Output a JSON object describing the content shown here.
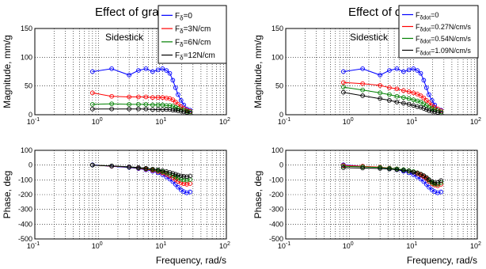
{
  "chart_data": [
    {
      "type": "line",
      "title": "Effect of gradient",
      "annotation": "Sidestick",
      "xlabel": "",
      "ylabel": "Magnitude, mm/g",
      "xscale": "log",
      "xlim": [
        0.1,
        100
      ],
      "ylim": [
        0,
        150
      ],
      "yticks": [
        0,
        50,
        100,
        150
      ],
      "xticks": [
        "10-1",
        "100",
        "101",
        "102"
      ],
      "grid": true,
      "legend": "top-right",
      "series": [
        {
          "name": "Fδ=0",
          "legend_main": "F",
          "legend_sub": "δ",
          "legend_rest": "=0",
          "color": "#0000ff",
          "x": [
            0.8,
            1.6,
            3,
            4.2,
            5.5,
            7,
            8.5,
            10,
            11.5,
            13,
            14.5,
            16,
            17.5,
            19.5,
            21.5,
            24,
            27
          ],
          "y": [
            75,
            80,
            69,
            77,
            80,
            75,
            78,
            80,
            77,
            72,
            60,
            47,
            35,
            25,
            17,
            10,
            8
          ]
        },
        {
          "name": "Fδ=3N/cm",
          "legend_main": "F",
          "legend_sub": "δ",
          "legend_rest": "=3N/cm",
          "color": "#ff0000",
          "x": [
            0.8,
            1.6,
            3,
            4.2,
            5.5,
            7,
            8.5,
            10,
            11.5,
            13,
            14.5,
            16,
            17.5,
            19.5,
            21.5,
            24,
            27
          ],
          "y": [
            38,
            32,
            31,
            31,
            31,
            30,
            30,
            30,
            29,
            28,
            26,
            22,
            18,
            14,
            11,
            8,
            6
          ]
        },
        {
          "name": "Fδ=6N/cm",
          "legend_main": "F",
          "legend_sub": "δ",
          "legend_rest": "=6N/cm",
          "color": "#008000",
          "x": [
            0.8,
            1.6,
            3,
            4.2,
            5.5,
            7,
            8.5,
            10,
            11.5,
            13,
            14.5,
            16,
            17.5,
            19.5,
            21.5,
            24,
            27
          ],
          "y": [
            18,
            19,
            18,
            18,
            18,
            17,
            17,
            17,
            16,
            16,
            15,
            13,
            11,
            9,
            8,
            6,
            5
          ]
        },
        {
          "name": "Fδ=12N/cm",
          "legend_main": "F",
          "legend_sub": "δ",
          "legend_rest": "=12N/cm",
          "color": "#000000",
          "x": [
            0.8,
            1.6,
            3,
            4.2,
            5.5,
            7,
            8.5,
            10,
            11.5,
            13,
            14.5,
            16,
            17.5,
            19.5,
            21.5,
            24,
            27
          ],
          "y": [
            10,
            10,
            10,
            10,
            10,
            9,
            9,
            9,
            9,
            9,
            8,
            8,
            7,
            6,
            5,
            4,
            3
          ]
        }
      ]
    },
    {
      "type": "line",
      "title": "Effect of damping",
      "annotation": "Sidestick",
      "xlabel": "",
      "ylabel": "Magnitude, mm/g",
      "xscale": "log",
      "xlim": [
        0.1,
        100
      ],
      "ylim": [
        0,
        150
      ],
      "yticks": [
        0,
        50,
        100,
        150
      ],
      "xticks": [
        "10-1",
        "100",
        "101",
        "102"
      ],
      "grid": true,
      "legend": "top-right",
      "series": [
        {
          "name": "Fδdot=0",
          "legend_main": "F",
          "legend_sub": "δdot",
          "legend_rest": "=0",
          "color": "#0000ff",
          "x": [
            0.8,
            1.6,
            3,
            4.2,
            5.5,
            7,
            8.5,
            10,
            11.5,
            13,
            14.5,
            16,
            17.5,
            19.5,
            21.5,
            24,
            27
          ],
          "y": [
            75,
            80,
            69,
            77,
            80,
            75,
            78,
            80,
            77,
            72,
            60,
            47,
            35,
            25,
            17,
            10,
            8
          ]
        },
        {
          "name": "Fδdot=0.27N/cm/s",
          "legend_main": "F",
          "legend_sub": "δdot",
          "legend_rest": "=0.27N/cm/s",
          "color": "#ff0000",
          "x": [
            0.8,
            1.6,
            3,
            4.2,
            5.5,
            7,
            8.5,
            10,
            11.5,
            13,
            14.5,
            16,
            17.5,
            19.5,
            21.5,
            24,
            27
          ],
          "y": [
            56,
            54,
            51,
            47,
            45,
            42,
            40,
            38,
            36,
            33,
            29,
            25,
            21,
            16,
            13,
            10,
            7
          ]
        },
        {
          "name": "Fδdot=0.54N/cm/s",
          "legend_main": "F",
          "legend_sub": "δdot",
          "legend_rest": "=0.54N/cm/s",
          "color": "#008000",
          "x": [
            0.8,
            1.6,
            3,
            4.2,
            5.5,
            7,
            8.5,
            10,
            11.5,
            13,
            14.5,
            16,
            17.5,
            19.5,
            21.5,
            24,
            27
          ],
          "y": [
            48,
            43,
            38,
            35,
            32,
            30,
            28,
            26,
            24,
            22,
            19,
            16,
            13,
            11,
            9,
            7,
            5
          ]
        },
        {
          "name": "Fδdot=1.09N/cm/s",
          "legend_main": "F",
          "legend_sub": "δdot",
          "legend_rest": "=1.09N/cm/s",
          "color": "#000000",
          "x": [
            0.8,
            1.6,
            3,
            4.2,
            5.5,
            7,
            8.5,
            10,
            11.5,
            13,
            14.5,
            16,
            17.5,
            19.5,
            21.5,
            24,
            27
          ],
          "y": [
            39,
            33,
            28,
            25,
            22,
            20,
            18,
            16,
            14,
            13,
            11,
            9,
            7,
            6,
            5,
            4,
            3
          ]
        }
      ]
    },
    {
      "type": "line",
      "title": "",
      "xlabel": "Frequency, rad/s",
      "ylabel": "Phase, deg",
      "xscale": "log",
      "xlim": [
        0.1,
        100
      ],
      "ylim": [
        -500,
        100
      ],
      "yticks": [
        -500,
        -400,
        -300,
        -200,
        -100,
        0,
        100
      ],
      "xticks": [
        "10-1",
        "100",
        "101",
        "102"
      ],
      "grid": true,
      "series": [
        {
          "color": "#0000ff",
          "x": [
            0.8,
            1.6,
            3,
            4.2,
            5.5,
            7,
            8.5,
            10,
            11.5,
            13,
            14.5,
            16,
            17.5,
            19.5,
            21.5,
            24,
            27
          ],
          "y": [
            2,
            -8,
            -16,
            -24,
            -32,
            -42,
            -52,
            -65,
            -80,
            -95,
            -112,
            -130,
            -150,
            -168,
            -180,
            -188,
            -182
          ]
        },
        {
          "color": "#ff0000",
          "x": [
            0.8,
            1.6,
            3,
            4.2,
            5.5,
            7,
            8.5,
            10,
            11.5,
            13,
            14.5,
            16,
            17.5,
            19.5,
            21.5,
            24,
            27
          ],
          "y": [
            0,
            -7,
            -14,
            -21,
            -28,
            -36,
            -44,
            -53,
            -63,
            -74,
            -86,
            -98,
            -110,
            -120,
            -126,
            -130,
            -125
          ]
        },
        {
          "color": "#008000",
          "x": [
            0.8,
            1.6,
            3,
            4.2,
            5.5,
            7,
            8.5,
            10,
            11.5,
            13,
            14.5,
            16,
            17.5,
            19.5,
            21.5,
            24,
            27
          ],
          "y": [
            0,
            -6,
            -13,
            -19,
            -25,
            -31,
            -38,
            -45,
            -53,
            -61,
            -70,
            -80,
            -88,
            -96,
            -100,
            -102,
            -98
          ]
        },
        {
          "color": "#000000",
          "x": [
            0.8,
            1.6,
            3,
            4.2,
            5.5,
            7,
            8.5,
            10,
            11.5,
            13,
            14.5,
            16,
            17.5,
            19.5,
            21.5,
            24,
            27
          ],
          "y": [
            0,
            -6,
            -12,
            -17,
            -22,
            -27,
            -32,
            -38,
            -44,
            -50,
            -56,
            -62,
            -68,
            -73,
            -76,
            -78,
            -74
          ]
        }
      ]
    },
    {
      "type": "line",
      "title": "",
      "xlabel": "Frequency, rad/s",
      "ylabel": "Phase, deg",
      "xscale": "log",
      "xlim": [
        0.1,
        100
      ],
      "ylim": [
        -500,
        100
      ],
      "yticks": [
        -500,
        -400,
        -300,
        -200,
        -100,
        0,
        100
      ],
      "xticks": [
        "10-1",
        "100",
        "101",
        "102"
      ],
      "grid": true,
      "series": [
        {
          "color": "#0000ff",
          "x": [
            0.8,
            1.6,
            3,
            4.2,
            5.5,
            7,
            8.5,
            10,
            11.5,
            13,
            14.5,
            16,
            17.5,
            19.5,
            21.5,
            24,
            27
          ],
          "y": [
            2,
            -8,
            -16,
            -24,
            -32,
            -42,
            -52,
            -65,
            -80,
            -95,
            -112,
            -130,
            -150,
            -168,
            -180,
            -188,
            -182
          ]
        },
        {
          "color": "#ff0000",
          "x": [
            0.8,
            1.6,
            3,
            4.2,
            5.5,
            7,
            8.5,
            10,
            11.5,
            13,
            14.5,
            16,
            17.5,
            19.5,
            21.5,
            24,
            27
          ],
          "y": [
            -2,
            -8,
            -14,
            -20,
            -26,
            -33,
            -40,
            -48,
            -57,
            -67,
            -78,
            -92,
            -110,
            -125,
            -135,
            -140,
            -130
          ]
        },
        {
          "color": "#008000",
          "x": [
            0.8,
            1.6,
            3,
            4.2,
            5.5,
            7,
            8.5,
            10,
            11.5,
            13,
            14.5,
            16,
            17.5,
            19.5,
            21.5,
            24,
            27
          ],
          "y": [
            -8,
            -12,
            -16,
            -21,
            -26,
            -31,
            -37,
            -44,
            -52,
            -61,
            -72,
            -85,
            -102,
            -118,
            -128,
            -130,
            -118
          ]
        },
        {
          "color": "#000000",
          "x": [
            0.8,
            1.6,
            3,
            4.2,
            5.5,
            7,
            8.5,
            10,
            11.5,
            13,
            14.5,
            16,
            17.5,
            19.5,
            21.5,
            24,
            27
          ],
          "y": [
            -18,
            -20,
            -23,
            -27,
            -31,
            -36,
            -41,
            -47,
            -54,
            -62,
            -72,
            -84,
            -98,
            -112,
            -120,
            -118,
            -105
          ]
        }
      ]
    }
  ]
}
